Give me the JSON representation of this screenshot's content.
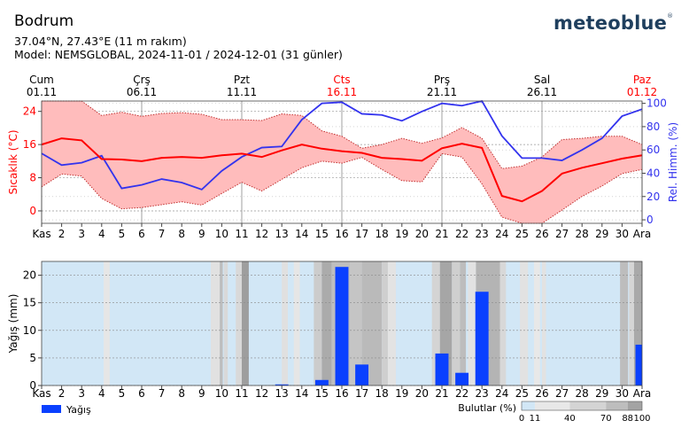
{
  "header": {
    "location": "Bodrum",
    "coords": "37.04°N, 27.43°E (11 m rakım)",
    "model": "Model: NEMSGLOBAL, 2024-11-01 / 2024-12-01 (31 günler)",
    "logo": "meteoblue",
    "logo_mark": "®"
  },
  "colors": {
    "temp": "#ff0000",
    "temp_band": "#ffbcbc",
    "humidity": "#3333ee",
    "precip": "#0a40ff",
    "sunday": "#ff0000"
  },
  "week_labels": [
    {
      "day": "Cum",
      "date": "01.11",
      "pos": 1,
      "weekend": false
    },
    {
      "day": "Çrş",
      "date": "06.11",
      "pos": 6,
      "weekend": false
    },
    {
      "day": "Pzt",
      "date": "11.11",
      "pos": 11,
      "weekend": false
    },
    {
      "day": "Cts",
      "date": "16.11",
      "pos": 16,
      "weekend": true
    },
    {
      "day": "Prş",
      "date": "21.11",
      "pos": 21,
      "weekend": false
    },
    {
      "day": "Sal",
      "date": "26.11",
      "pos": 26,
      "weekend": false
    },
    {
      "day": "Paz",
      "date": "01.12",
      "pos": 31,
      "weekend": true
    }
  ],
  "x_ticks": [
    "Kas",
    "2",
    "3",
    "4",
    "5",
    "6",
    "7",
    "8",
    "9",
    "10",
    "11",
    "12",
    "13",
    "14",
    "15",
    "16",
    "17",
    "18",
    "19",
    "20",
    "21",
    "22",
    "23",
    "24",
    "25",
    "26",
    "27",
    "28",
    "29",
    "30",
    "Ara"
  ],
  "chart_data": [
    {
      "type": "line",
      "x": [
        1,
        2,
        3,
        4,
        5,
        6,
        7,
        8,
        9,
        10,
        11,
        12,
        13,
        14,
        15,
        16,
        17,
        18,
        19,
        20,
        21,
        22,
        23,
        24,
        25,
        26,
        27,
        28,
        29,
        30,
        31
      ],
      "ylabel_left": "Sıcaklık (°C)",
      "ylabel_right": "Rel. Himm. (%)",
      "ylim_left": [
        -3,
        26.5
      ],
      "yticks_left": [
        0,
        8,
        16,
        24
      ],
      "ylim_right": [
        -3,
        102
      ],
      "yticks_right": [
        0,
        20,
        40,
        60,
        80,
        100
      ],
      "series": [
        {
          "axis": "left",
          "kind": "mean",
          "values": [
            16,
            17.5,
            17,
            12.5,
            12.4,
            12,
            12.8,
            13,
            12.8,
            13.4,
            13.8,
            13,
            14.6,
            16,
            15,
            14.4,
            14,
            12.8,
            12.5,
            12.1,
            15.1,
            16.2,
            15.2,
            3.6,
            2.3,
            4.8,
            9,
            10.4,
            11.5,
            12.6,
            13.4
          ]
        },
        {
          "axis": "left",
          "kind": "max",
          "values": [
            26.5,
            26.5,
            26.5,
            23,
            23.8,
            22.8,
            23.5,
            23.7,
            23.3,
            22,
            22,
            21.8,
            23.4,
            23,
            19.3,
            18,
            15.1,
            16,
            17.5,
            16.3,
            17.6,
            20.1,
            17.5,
            10.2,
            10.8,
            13,
            17.2,
            17.5,
            18,
            18,
            16
          ]
        },
        {
          "axis": "left",
          "kind": "min",
          "values": [
            5.8,
            8.9,
            8.4,
            3,
            0.5,
            0.8,
            1.5,
            2.2,
            1.4,
            4.2,
            6.9,
            4.8,
            7.6,
            10.4,
            12,
            11.5,
            12.9,
            10,
            7.3,
            7,
            13.8,
            13,
            6.5,
            -1.5,
            -3,
            -3,
            0.2,
            3.5,
            6,
            9,
            10
          ]
        },
        {
          "axis": "right",
          "kind": "humidity",
          "values": [
            57,
            47,
            49,
            55,
            27,
            30,
            35,
            32,
            26,
            42,
            54,
            62,
            63,
            86,
            100,
            101,
            91,
            90,
            85,
            93,
            100,
            98,
            103,
            72,
            53,
            53,
            51,
            60,
            70,
            89,
            95
          ]
        }
      ]
    },
    {
      "type": "bar",
      "ylabel": "Yağış (mm)",
      "ylim": [
        0,
        22.5
      ],
      "yticks": [
        0,
        5,
        10,
        15,
        20
      ],
      "legend": "Yağış",
      "precip_days": [
        13,
        15,
        16,
        17,
        21,
        22,
        23,
        31
      ],
      "precip_values": [
        0.2,
        1,
        21.5,
        3.8,
        5.8,
        2.3,
        17,
        7.4
      ]
    }
  ],
  "cloud_legend": {
    "label": "Bulutlar (%)",
    "ticks": [
      "0",
      "11",
      "40",
      "70",
      "88",
      "100"
    ]
  }
}
